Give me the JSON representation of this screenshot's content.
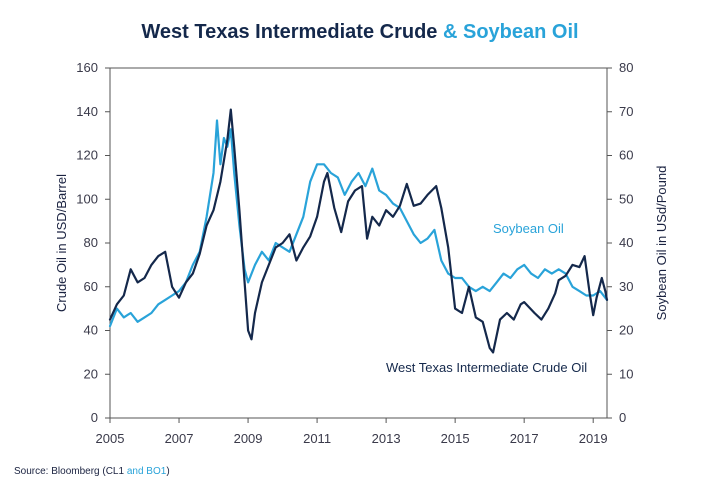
{
  "colors": {
    "wti": "#14284b",
    "soy": "#29a3d9",
    "title_dark": "#14284b",
    "title_blue": "#29a3d9"
  },
  "source": {
    "prefix": "Source: Bloomberg (CL1 ",
    "highlight": "and BO1",
    "suffix": ")"
  },
  "chart_data": {
    "type": "line",
    "title_part1": "West Texas Intermediate Crude ",
    "title_part2": "& Soybean Oil",
    "xlabel": "",
    "ylabel_left": "Crude Oil in USD/Barrel",
    "ylabel_right": "Soybean Oil in USd/Pound",
    "xlim": [
      2005,
      2019.4
    ],
    "ylim_left": [
      0,
      160
    ],
    "ylim_right": [
      0,
      80
    ],
    "x_ticks": [
      "2005",
      "2007",
      "2009",
      "2011",
      "2013",
      "2015",
      "2017",
      "2019"
    ],
    "y_ticks_left": [
      "0",
      "20",
      "40",
      "60",
      "80",
      "100",
      "120",
      "140",
      "160"
    ],
    "y_ticks_right": [
      "0",
      "10",
      "20",
      "30",
      "40",
      "50",
      "60",
      "70",
      "80"
    ],
    "annotations": {
      "soy_label": "Soybean Oil",
      "wti_label": "West Texas Intermediate Crude Oil"
    },
    "series": [
      {
        "name": "West Texas Intermediate Crude Oil",
        "axis": "left",
        "points": [
          [
            2005.0,
            45
          ],
          [
            2005.2,
            52
          ],
          [
            2005.4,
            56
          ],
          [
            2005.6,
            68
          ],
          [
            2005.8,
            62
          ],
          [
            2006.0,
            64
          ],
          [
            2006.2,
            70
          ],
          [
            2006.4,
            74
          ],
          [
            2006.6,
            76
          ],
          [
            2006.8,
            60
          ],
          [
            2007.0,
            55
          ],
          [
            2007.2,
            62
          ],
          [
            2007.4,
            66
          ],
          [
            2007.6,
            75
          ],
          [
            2007.8,
            88
          ],
          [
            2008.0,
            95
          ],
          [
            2008.2,
            108
          ],
          [
            2008.4,
            127
          ],
          [
            2008.5,
            141
          ],
          [
            2008.6,
            124
          ],
          [
            2008.75,
            95
          ],
          [
            2008.9,
            62
          ],
          [
            2009.0,
            40
          ],
          [
            2009.1,
            36
          ],
          [
            2009.2,
            48
          ],
          [
            2009.4,
            62
          ],
          [
            2009.6,
            70
          ],
          [
            2009.8,
            78
          ],
          [
            2010.0,
            80
          ],
          [
            2010.2,
            84
          ],
          [
            2010.4,
            72
          ],
          [
            2010.6,
            78
          ],
          [
            2010.8,
            83
          ],
          [
            2011.0,
            92
          ],
          [
            2011.2,
            108
          ],
          [
            2011.3,
            112
          ],
          [
            2011.5,
            96
          ],
          [
            2011.7,
            85
          ],
          [
            2011.9,
            99
          ],
          [
            2012.1,
            104
          ],
          [
            2012.3,
            106
          ],
          [
            2012.45,
            82
          ],
          [
            2012.6,
            92
          ],
          [
            2012.8,
            88
          ],
          [
            2013.0,
            95
          ],
          [
            2013.2,
            92
          ],
          [
            2013.4,
            97
          ],
          [
            2013.6,
            107
          ],
          [
            2013.8,
            97
          ],
          [
            2014.0,
            98
          ],
          [
            2014.2,
            102
          ],
          [
            2014.45,
            106
          ],
          [
            2014.6,
            96
          ],
          [
            2014.8,
            78
          ],
          [
            2015.0,
            50
          ],
          [
            2015.2,
            48
          ],
          [
            2015.4,
            60
          ],
          [
            2015.6,
            46
          ],
          [
            2015.8,
            44
          ],
          [
            2016.0,
            32
          ],
          [
            2016.1,
            30
          ],
          [
            2016.3,
            45
          ],
          [
            2016.5,
            48
          ],
          [
            2016.7,
            45
          ],
          [
            2016.9,
            52
          ],
          [
            2017.0,
            53
          ],
          [
            2017.3,
            48
          ],
          [
            2017.5,
            45
          ],
          [
            2017.7,
            50
          ],
          [
            2017.9,
            57
          ],
          [
            2018.0,
            63
          ],
          [
            2018.2,
            65
          ],
          [
            2018.4,
            70
          ],
          [
            2018.6,
            69
          ],
          [
            2018.75,
            74
          ],
          [
            2018.9,
            57
          ],
          [
            2019.0,
            47
          ],
          [
            2019.1,
            55
          ],
          [
            2019.25,
            64
          ],
          [
            2019.35,
            58
          ],
          [
            2019.4,
            54
          ]
        ]
      },
      {
        "name": "Soybean Oil",
        "axis": "right",
        "points": [
          [
            2005.0,
            21
          ],
          [
            2005.2,
            25
          ],
          [
            2005.4,
            23
          ],
          [
            2005.6,
            24
          ],
          [
            2005.8,
            22
          ],
          [
            2006.0,
            23
          ],
          [
            2006.2,
            24
          ],
          [
            2006.4,
            26
          ],
          [
            2006.6,
            27
          ],
          [
            2006.8,
            28
          ],
          [
            2007.0,
            29
          ],
          [
            2007.2,
            31
          ],
          [
            2007.4,
            35
          ],
          [
            2007.6,
            38
          ],
          [
            2007.8,
            46
          ],
          [
            2008.0,
            56
          ],
          [
            2008.1,
            68
          ],
          [
            2008.2,
            58
          ],
          [
            2008.3,
            64
          ],
          [
            2008.4,
            62
          ],
          [
            2008.5,
            66
          ],
          [
            2008.6,
            56
          ],
          [
            2008.75,
            44
          ],
          [
            2008.9,
            34
          ],
          [
            2009.0,
            31
          ],
          [
            2009.2,
            35
          ],
          [
            2009.4,
            38
          ],
          [
            2009.6,
            36
          ],
          [
            2009.8,
            40
          ],
          [
            2010.0,
            39
          ],
          [
            2010.2,
            38
          ],
          [
            2010.4,
            42
          ],
          [
            2010.6,
            46
          ],
          [
            2010.8,
            54
          ],
          [
            2011.0,
            58
          ],
          [
            2011.2,
            58
          ],
          [
            2011.4,
            56
          ],
          [
            2011.6,
            55
          ],
          [
            2011.8,
            51
          ],
          [
            2012.0,
            54
          ],
          [
            2012.2,
            56
          ],
          [
            2012.4,
            53
          ],
          [
            2012.6,
            57
          ],
          [
            2012.8,
            52
          ],
          [
            2013.0,
            51
          ],
          [
            2013.2,
            49
          ],
          [
            2013.4,
            48
          ],
          [
            2013.6,
            45
          ],
          [
            2013.8,
            42
          ],
          [
            2014.0,
            40
          ],
          [
            2014.2,
            41
          ],
          [
            2014.4,
            43
          ],
          [
            2014.6,
            36
          ],
          [
            2014.8,
            33
          ],
          [
            2015.0,
            32
          ],
          [
            2015.2,
            32
          ],
          [
            2015.4,
            30
          ],
          [
            2015.6,
            29
          ],
          [
            2015.8,
            30
          ],
          [
            2016.0,
            29
          ],
          [
            2016.2,
            31
          ],
          [
            2016.4,
            33
          ],
          [
            2016.6,
            32
          ],
          [
            2016.8,
            34
          ],
          [
            2017.0,
            35
          ],
          [
            2017.2,
            33
          ],
          [
            2017.4,
            32
          ],
          [
            2017.6,
            34
          ],
          [
            2017.8,
            33
          ],
          [
            2018.0,
            34
          ],
          [
            2018.2,
            33
          ],
          [
            2018.4,
            30
          ],
          [
            2018.6,
            29
          ],
          [
            2018.8,
            28
          ],
          [
            2019.0,
            28
          ],
          [
            2019.2,
            29
          ],
          [
            2019.4,
            27
          ]
        ]
      }
    ]
  }
}
